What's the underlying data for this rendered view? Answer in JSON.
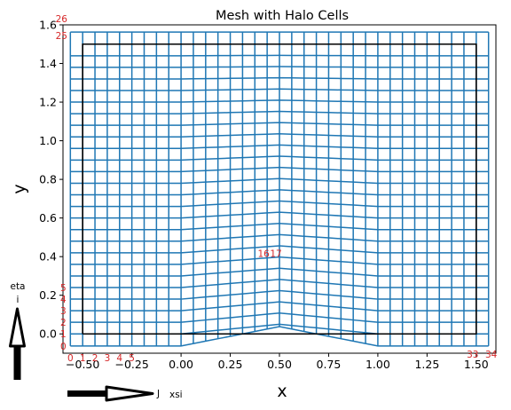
{
  "chart_data": {
    "type": "line",
    "title": "Mesh with Halo Cells",
    "xlabel": "x",
    "ylabel": "y",
    "xlim": [
      -0.6,
      1.6
    ],
    "ylim": [
      -0.1,
      1.6
    ],
    "xticks": [
      -0.5,
      -0.25,
      0.0,
      0.25,
      0.5,
      0.75,
      1.0,
      1.25,
      1.5
    ],
    "xtick_labels": [
      "−0.50",
      "−0.25",
      "0.00",
      "0.25",
      "0.50",
      "0.75",
      "1.00",
      "1.25",
      "1.50"
    ],
    "yticks": [
      0.0,
      0.2,
      0.4,
      0.6,
      0.8,
      1.0,
      1.2,
      1.4,
      1.6
    ],
    "ytick_labels": [
      "0.0",
      "0.2",
      "0.4",
      "0.6",
      "0.8",
      "1.0",
      "1.2",
      "1.4",
      "1.6"
    ],
    "grid": false,
    "mesh": {
      "color": "#1f77b4",
      "x_nodes": [
        -0.5625,
        -0.5,
        -0.4375,
        -0.375,
        -0.3125,
        -0.25,
        -0.1875,
        -0.125,
        -0.0625,
        0.0,
        0.0625,
        0.125,
        0.1875,
        0.25,
        0.3125,
        0.375,
        0.4375,
        0.5,
        0.5625,
        0.625,
        0.6875,
        0.75,
        0.8125,
        0.875,
        0.9375,
        1.0,
        1.0625,
        1.125,
        1.1875,
        1.25,
        1.3125,
        1.375,
        1.4375,
        1.5,
        1.5625
      ],
      "row_count": 27,
      "y_bottom": -0.0625,
      "y_top": 1.5625,
      "y_inner_top": 1.5,
      "bump": {
        "x_start": 0.0,
        "x_peak": 0.5,
        "x_end": 1.0,
        "height": 0.05
      }
    },
    "domain_boundary": {
      "color": "#000000",
      "x": [
        -0.5,
        1.5,
        1.5,
        -0.5,
        -0.5
      ],
      "y": [
        0.0,
        0.0,
        1.5,
        1.5,
        0.0
      ]
    },
    "index_labels": {
      "color": "#d62728",
      "i_bottom": [
        "0",
        "1",
        "2",
        "3",
        "4",
        "5"
      ],
      "i_middle": [
        "16",
        "17"
      ],
      "i_end": [
        "33",
        "34"
      ],
      "j_left": [
        "0",
        "1",
        "2",
        "3",
        "4",
        "5"
      ],
      "j_top": [
        "25",
        "26"
      ]
    },
    "direction_arrows": {
      "horizontal_label": "xsi",
      "horizontal_index": "J",
      "vertical_label": "eta",
      "vertical_index": "i"
    }
  }
}
